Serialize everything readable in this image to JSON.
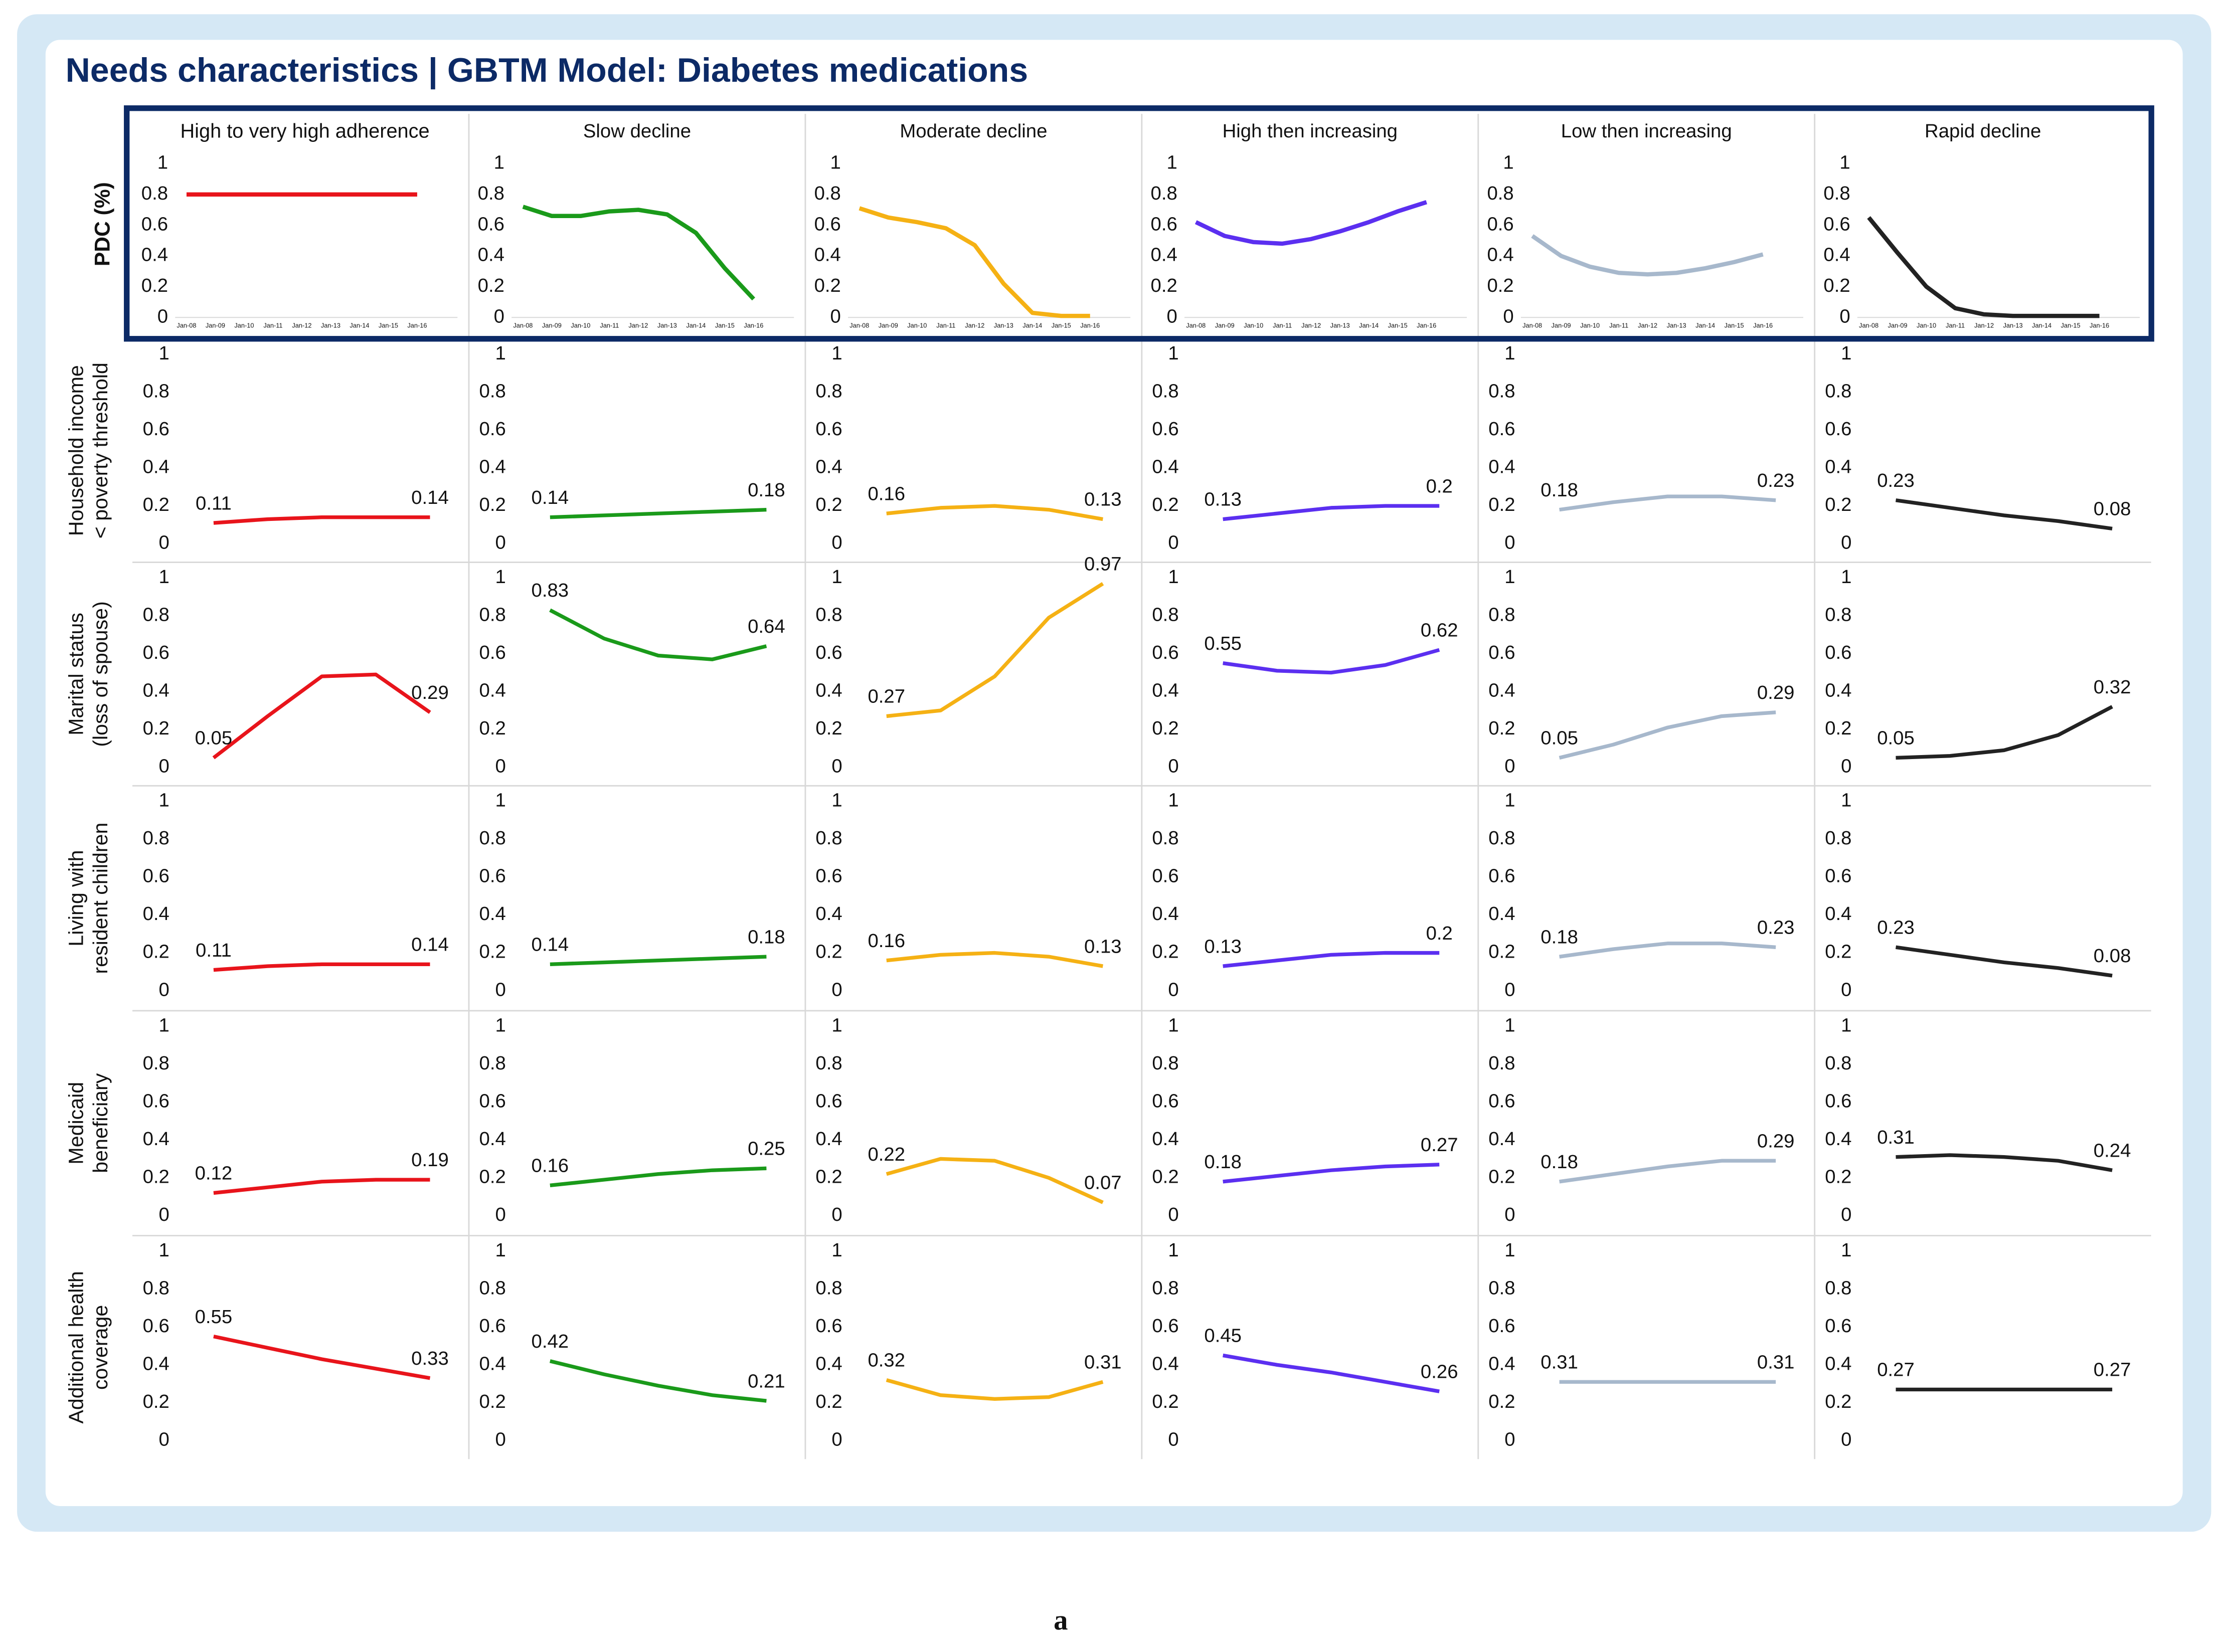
{
  "title": "Needs characteristics | GBTM Model: Diabetes medications",
  "caption": "a",
  "chart_data": [
    {
      "type": "line",
      "title": "High to very high adherence",
      "ylabel": [
        "PDC (%)"
      ],
      "categories": [
        "Jan-08",
        "Jan-09",
        "Jan-10",
        "Jan-11",
        "Jan-12",
        "Jan-13",
        "Jan-14",
        "Jan-15",
        "Jan-16"
      ],
      "values": [
        0.8,
        0.8,
        0.8,
        0.8,
        0.8,
        0.8,
        0.8,
        0.8,
        0.8
      ],
      "color": "#e8141b",
      "ylim": [
        0,
        1
      ],
      "yticks": [
        0,
        0.2,
        0.4,
        0.6,
        0.8,
        1
      ]
    },
    {
      "type": "line",
      "title": "Slow decline",
      "categories": [
        "Jan-08",
        "Jan-09",
        "Jan-10",
        "Jan-11",
        "Jan-12",
        "Jan-13",
        "Jan-14",
        "Jan-15",
        "Jan-16"
      ],
      "values": [
        0.72,
        0.66,
        0.66,
        0.69,
        0.7,
        0.67,
        0.55,
        0.32,
        0.12
      ],
      "color": "#1a9a1a",
      "ylim": [
        0,
        1
      ],
      "yticks": [
        0,
        0.2,
        0.4,
        0.6,
        0.8,
        1
      ]
    },
    {
      "type": "line",
      "title": "Moderate decline",
      "categories": [
        "Jan-08",
        "Jan-09",
        "Jan-10",
        "Jan-11",
        "Jan-12",
        "Jan-13",
        "Jan-14",
        "Jan-15",
        "Jan-16"
      ],
      "values": [
        0.71,
        0.65,
        0.62,
        0.58,
        0.47,
        0.22,
        0.03,
        0.01,
        0.01
      ],
      "color": "#f5b114",
      "ylim": [
        0,
        1
      ],
      "yticks": [
        0,
        0.2,
        0.4,
        0.6,
        0.8,
        1
      ]
    },
    {
      "type": "line",
      "title": "High then increasing",
      "categories": [
        "Jan-08",
        "Jan-09",
        "Jan-10",
        "Jan-11",
        "Jan-12",
        "Jan-13",
        "Jan-14",
        "Jan-15",
        "Jan-16"
      ],
      "values": [
        0.62,
        0.53,
        0.49,
        0.48,
        0.51,
        0.56,
        0.62,
        0.69,
        0.75
      ],
      "color": "#5b2ff0",
      "ylim": [
        0,
        1
      ],
      "yticks": [
        0,
        0.2,
        0.4,
        0.6,
        0.8,
        1
      ]
    },
    {
      "type": "line",
      "title": "Low then increasing",
      "categories": [
        "Jan-08",
        "Jan-09",
        "Jan-10",
        "Jan-11",
        "Jan-12",
        "Jan-13",
        "Jan-14",
        "Jan-15",
        "Jan-16"
      ],
      "values": [
        0.53,
        0.4,
        0.33,
        0.29,
        0.28,
        0.29,
        0.32,
        0.36,
        0.41
      ],
      "color": "#a7b8cc",
      "ylim": [
        0,
        1
      ],
      "yticks": [
        0,
        0.2,
        0.4,
        0.6,
        0.8,
        1
      ]
    },
    {
      "type": "line",
      "title": "Rapid decline",
      "categories": [
        "Jan-08",
        "Jan-09",
        "Jan-10",
        "Jan-11",
        "Jan-12",
        "Jan-13",
        "Jan-14",
        "Jan-15",
        "Jan-16"
      ],
      "values": [
        0.65,
        0.42,
        0.2,
        0.06,
        0.02,
        0.01,
        0.01,
        0.01,
        0.01
      ],
      "color": "#222222",
      "ylim": [
        0,
        1
      ],
      "yticks": [
        0,
        0.2,
        0.4,
        0.6,
        0.8,
        1
      ]
    },
    {
      "type": "line",
      "ylabel": [
        "Household income",
        "< poverty threshold"
      ],
      "values": [
        0.11,
        0.13,
        0.14,
        0.14,
        0.14
      ],
      "color": "#e8141b",
      "ylim": [
        0,
        1
      ],
      "yticks": [
        0,
        0.2,
        0.4,
        0.6,
        0.8,
        1
      ],
      "data_labels": "ends"
    },
    {
      "type": "line",
      "values": [
        0.14,
        0.15,
        0.16,
        0.17,
        0.18
      ],
      "color": "#1a9a1a",
      "ylim": [
        0,
        1
      ],
      "yticks": [
        0,
        0.2,
        0.4,
        0.6,
        0.8,
        1
      ],
      "data_labels": "ends"
    },
    {
      "type": "line",
      "values": [
        0.16,
        0.19,
        0.2,
        0.18,
        0.13
      ],
      "color": "#f5b114",
      "ylim": [
        0,
        1
      ],
      "yticks": [
        0,
        0.2,
        0.4,
        0.6,
        0.8,
        1
      ],
      "data_labels": "ends"
    },
    {
      "type": "line",
      "values": [
        0.13,
        0.16,
        0.19,
        0.2,
        0.2
      ],
      "color": "#5b2ff0",
      "ylim": [
        0,
        1
      ],
      "yticks": [
        0,
        0.2,
        0.4,
        0.6,
        0.8,
        1
      ],
      "data_labels": "ends"
    },
    {
      "type": "line",
      "values": [
        0.18,
        0.22,
        0.25,
        0.25,
        0.23
      ],
      "color": "#a7b8cc",
      "ylim": [
        0,
        1
      ],
      "yticks": [
        0,
        0.2,
        0.4,
        0.6,
        0.8,
        1
      ],
      "data_labels": "ends"
    },
    {
      "type": "line",
      "values": [
        0.23,
        0.19,
        0.15,
        0.12,
        0.08
      ],
      "color": "#222222",
      "ylim": [
        0,
        1
      ],
      "yticks": [
        0,
        0.2,
        0.4,
        0.6,
        0.8,
        1
      ],
      "data_labels": "ends"
    },
    {
      "type": "line",
      "ylabel": [
        "Marital status",
        "(loss of spouse)"
      ],
      "values": [
        0.05,
        0.27,
        0.48,
        0.49,
        0.29
      ],
      "color": "#e8141b",
      "ylim": [
        0,
        1
      ],
      "yticks": [
        0,
        0.2,
        0.4,
        0.6,
        0.8,
        1
      ],
      "data_labels": "ends"
    },
    {
      "type": "line",
      "values": [
        0.83,
        0.68,
        0.59,
        0.57,
        0.64
      ],
      "color": "#1a9a1a",
      "ylim": [
        0,
        1
      ],
      "yticks": [
        0,
        0.2,
        0.4,
        0.6,
        0.8,
        1
      ],
      "data_labels": "ends"
    },
    {
      "type": "line",
      "values": [
        0.27,
        0.3,
        0.48,
        0.79,
        0.97
      ],
      "color": "#f5b114",
      "ylim": [
        0,
        1
      ],
      "yticks": [
        0,
        0.2,
        0.4,
        0.6,
        0.8,
        1
      ],
      "data_labels": "ends"
    },
    {
      "type": "line",
      "values": [
        0.55,
        0.51,
        0.5,
        0.54,
        0.62
      ],
      "color": "#5b2ff0",
      "ylim": [
        0,
        1
      ],
      "yticks": [
        0,
        0.2,
        0.4,
        0.6,
        0.8,
        1
      ],
      "data_labels": "ends"
    },
    {
      "type": "line",
      "values": [
        0.05,
        0.12,
        0.21,
        0.27,
        0.29
      ],
      "color": "#a7b8cc",
      "ylim": [
        0,
        1
      ],
      "yticks": [
        0,
        0.2,
        0.4,
        0.6,
        0.8,
        1
      ],
      "data_labels": "ends"
    },
    {
      "type": "line",
      "values": [
        0.05,
        0.06,
        0.09,
        0.17,
        0.32
      ],
      "color": "#222222",
      "ylim": [
        0,
        1
      ],
      "yticks": [
        0,
        0.2,
        0.4,
        0.6,
        0.8,
        1
      ],
      "data_labels": "ends"
    },
    {
      "type": "line",
      "ylabel": [
        "Living with",
        "resident children"
      ],
      "values": [
        0.11,
        0.13,
        0.14,
        0.14,
        0.14
      ],
      "color": "#e8141b",
      "ylim": [
        0,
        1
      ],
      "yticks": [
        0,
        0.2,
        0.4,
        0.6,
        0.8,
        1
      ],
      "data_labels": "ends"
    },
    {
      "type": "line",
      "values": [
        0.14,
        0.15,
        0.16,
        0.17,
        0.18
      ],
      "color": "#1a9a1a",
      "ylim": [
        0,
        1
      ],
      "yticks": [
        0,
        0.2,
        0.4,
        0.6,
        0.8,
        1
      ],
      "data_labels": "ends"
    },
    {
      "type": "line",
      "values": [
        0.16,
        0.19,
        0.2,
        0.18,
        0.13
      ],
      "color": "#f5b114",
      "ylim": [
        0,
        1
      ],
      "yticks": [
        0,
        0.2,
        0.4,
        0.6,
        0.8,
        1
      ],
      "data_labels": "ends"
    },
    {
      "type": "line",
      "values": [
        0.13,
        0.16,
        0.19,
        0.2,
        0.2
      ],
      "color": "#5b2ff0",
      "ylim": [
        0,
        1
      ],
      "yticks": [
        0,
        0.2,
        0.4,
        0.6,
        0.8,
        1
      ],
      "data_labels": "ends"
    },
    {
      "type": "line",
      "values": [
        0.18,
        0.22,
        0.25,
        0.25,
        0.23
      ],
      "color": "#a7b8cc",
      "ylim": [
        0,
        1
      ],
      "yticks": [
        0,
        0.2,
        0.4,
        0.6,
        0.8,
        1
      ],
      "data_labels": "ends"
    },
    {
      "type": "line",
      "values": [
        0.23,
        0.19,
        0.15,
        0.12,
        0.08
      ],
      "color": "#222222",
      "ylim": [
        0,
        1
      ],
      "yticks": [
        0,
        0.2,
        0.4,
        0.6,
        0.8,
        1
      ],
      "data_labels": "ends"
    },
    {
      "type": "line",
      "ylabel": [
        "Medicaid",
        "beneficiary"
      ],
      "values": [
        0.12,
        0.15,
        0.18,
        0.19,
        0.19
      ],
      "color": "#e8141b",
      "ylim": [
        0,
        1
      ],
      "yticks": [
        0,
        0.2,
        0.4,
        0.6,
        0.8,
        1
      ],
      "data_labels": "ends"
    },
    {
      "type": "line",
      "values": [
        0.16,
        0.19,
        0.22,
        0.24,
        0.25
      ],
      "color": "#1a9a1a",
      "ylim": [
        0,
        1
      ],
      "yticks": [
        0,
        0.2,
        0.4,
        0.6,
        0.8,
        1
      ],
      "data_labels": "ends"
    },
    {
      "type": "line",
      "values": [
        0.22,
        0.3,
        0.29,
        0.2,
        0.07
      ],
      "color": "#f5b114",
      "ylim": [
        0,
        1
      ],
      "yticks": [
        0,
        0.2,
        0.4,
        0.6,
        0.8,
        1
      ],
      "data_labels": "ends"
    },
    {
      "type": "line",
      "values": [
        0.18,
        0.21,
        0.24,
        0.26,
        0.27
      ],
      "color": "#5b2ff0",
      "ylim": [
        0,
        1
      ],
      "yticks": [
        0,
        0.2,
        0.4,
        0.6,
        0.8,
        1
      ],
      "data_labels": "ends"
    },
    {
      "type": "line",
      "values": [
        0.18,
        0.22,
        0.26,
        0.29,
        0.29
      ],
      "color": "#a7b8cc",
      "ylim": [
        0,
        1
      ],
      "yticks": [
        0,
        0.2,
        0.4,
        0.6,
        0.8,
        1
      ],
      "data_labels": "ends"
    },
    {
      "type": "line",
      "values": [
        0.31,
        0.32,
        0.31,
        0.29,
        0.24
      ],
      "color": "#222222",
      "ylim": [
        0,
        1
      ],
      "yticks": [
        0,
        0.2,
        0.4,
        0.6,
        0.8,
        1
      ],
      "data_labels": "ends"
    },
    {
      "type": "line",
      "ylabel": [
        "Additional health",
        "coverage"
      ],
      "values": [
        0.55,
        0.49,
        0.43,
        0.38,
        0.33
      ],
      "color": "#e8141b",
      "ylim": [
        0,
        1
      ],
      "yticks": [
        0,
        0.2,
        0.4,
        0.6,
        0.8,
        1
      ],
      "data_labels": "ends"
    },
    {
      "type": "line",
      "values": [
        0.42,
        0.35,
        0.29,
        0.24,
        0.21
      ],
      "color": "#1a9a1a",
      "ylim": [
        0,
        1
      ],
      "yticks": [
        0,
        0.2,
        0.4,
        0.6,
        0.8,
        1
      ],
      "data_labels": "ends"
    },
    {
      "type": "line",
      "values": [
        0.32,
        0.24,
        0.22,
        0.23,
        0.31
      ],
      "color": "#f5b114",
      "ylim": [
        0,
        1
      ],
      "yticks": [
        0,
        0.2,
        0.4,
        0.6,
        0.8,
        1
      ],
      "data_labels": "ends"
    },
    {
      "type": "line",
      "values": [
        0.45,
        0.4,
        0.36,
        0.31,
        0.26
      ],
      "color": "#5b2ff0",
      "ylim": [
        0,
        1
      ],
      "yticks": [
        0,
        0.2,
        0.4,
        0.6,
        0.8,
        1
      ],
      "data_labels": "ends"
    },
    {
      "type": "line",
      "values": [
        0.31,
        0.31,
        0.31,
        0.31,
        0.31
      ],
      "color": "#a7b8cc",
      "ylim": [
        0,
        1
      ],
      "yticks": [
        0,
        0.2,
        0.4,
        0.6,
        0.8,
        1
      ],
      "data_labels": "ends"
    },
    {
      "type": "line",
      "values": [
        0.27,
        0.27,
        0.27,
        0.27,
        0.27
      ],
      "color": "#222222",
      "ylim": [
        0,
        1
      ],
      "yticks": [
        0,
        0.2,
        0.4,
        0.6,
        0.8,
        1
      ],
      "data_labels": "ends"
    }
  ]
}
